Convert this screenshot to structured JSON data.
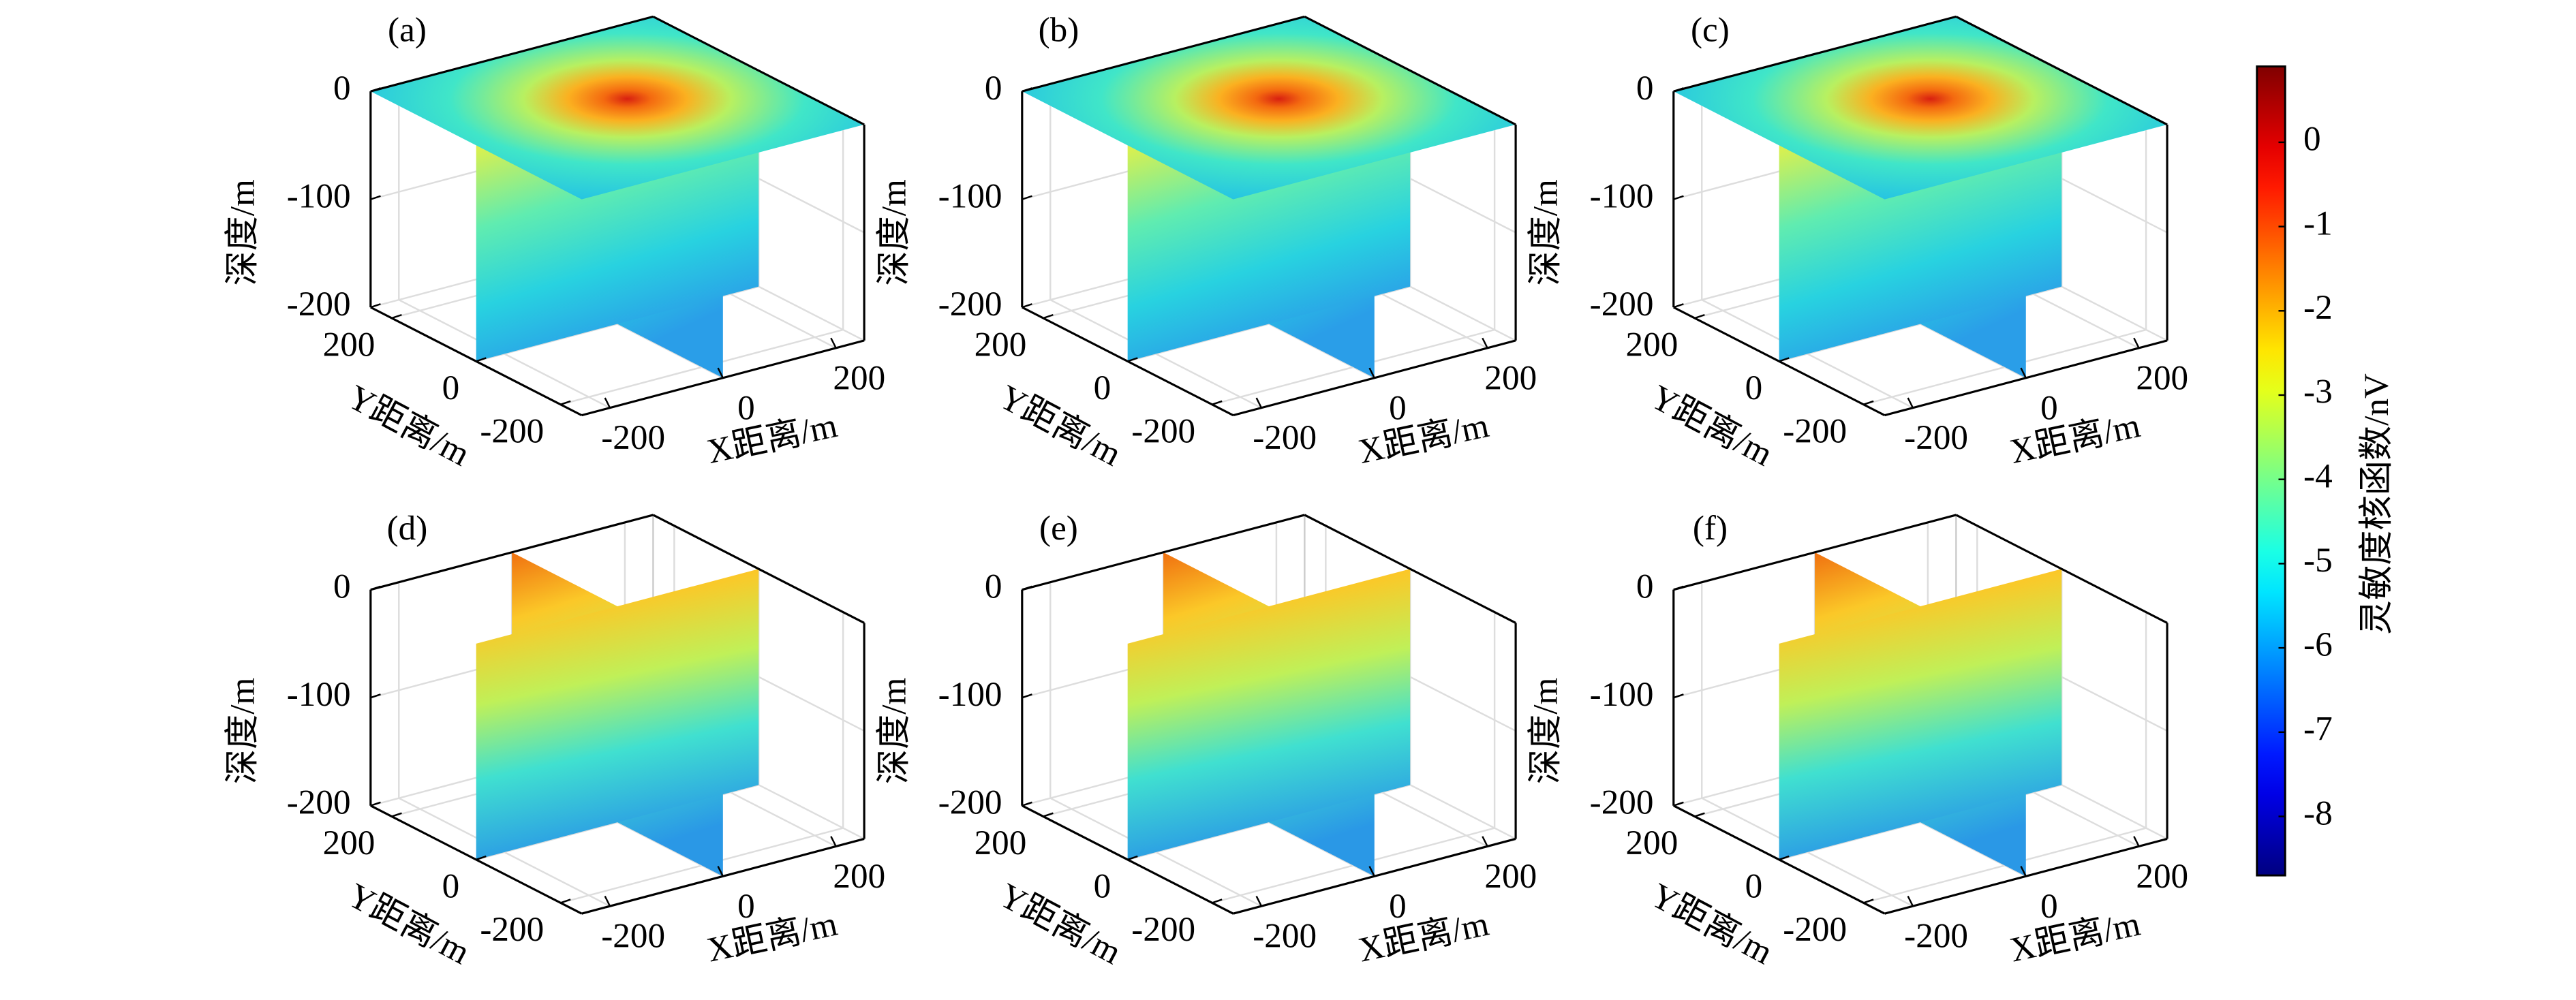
{
  "panels": [
    {
      "label": "(a)"
    },
    {
      "label": "(b)"
    },
    {
      "label": "(c)"
    },
    {
      "label": "(d)"
    },
    {
      "label": "(e)"
    },
    {
      "label": "(f)"
    }
  ],
  "axes": {
    "zlabel": "深度/m",
    "ylabel": "Y距离/m",
    "xlabel": "X距离/m",
    "xlim": [
      -250,
      250
    ],
    "ylim": [
      -250,
      250
    ],
    "zlim": [
      -200,
      0
    ],
    "xticks": [
      -200,
      0,
      200
    ],
    "yticks": [
      200,
      0,
      -200
    ],
    "zticks": [
      0,
      -100,
      -200
    ],
    "grid": true
  },
  "colorbar": {
    "label": "灵敏度核函数/nV",
    "lim": [
      -8.7,
      0.9
    ],
    "ticks": [
      0,
      -1,
      -2,
      -3,
      -4,
      -5,
      -6,
      -7,
      -8
    ],
    "colormap": "jet"
  }
}
